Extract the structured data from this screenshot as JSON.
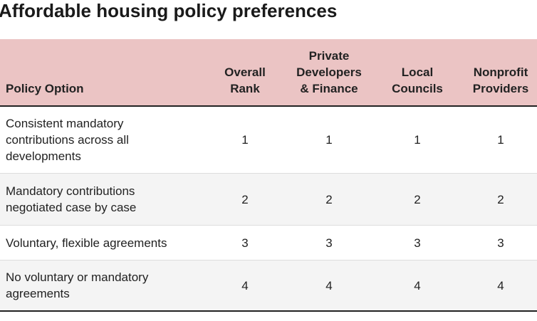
{
  "title": "Affordable housing policy preferences",
  "table": {
    "header": [
      [
        "Policy Option"
      ],
      [
        "Overall",
        "Rank"
      ],
      [
        "Private",
        "Developers",
        "& Finance"
      ],
      [
        "Local",
        "Councils"
      ],
      [
        "Nonprofit",
        "Providers"
      ]
    ],
    "rows": [
      [
        [
          "Consistent mandatory",
          "contributions across all",
          "developments"
        ],
        1,
        1,
        1,
        1
      ],
      [
        [
          "Mandatory contributions",
          "negotiated case by case"
        ],
        2,
        2,
        2,
        2
      ],
      [
        [
          "Voluntary, flexible agreements"
        ],
        3,
        3,
        3,
        3
      ],
      [
        [
          "No voluntary or mandatory",
          "agreements"
        ],
        4,
        4,
        4,
        4
      ]
    ]
  }
}
